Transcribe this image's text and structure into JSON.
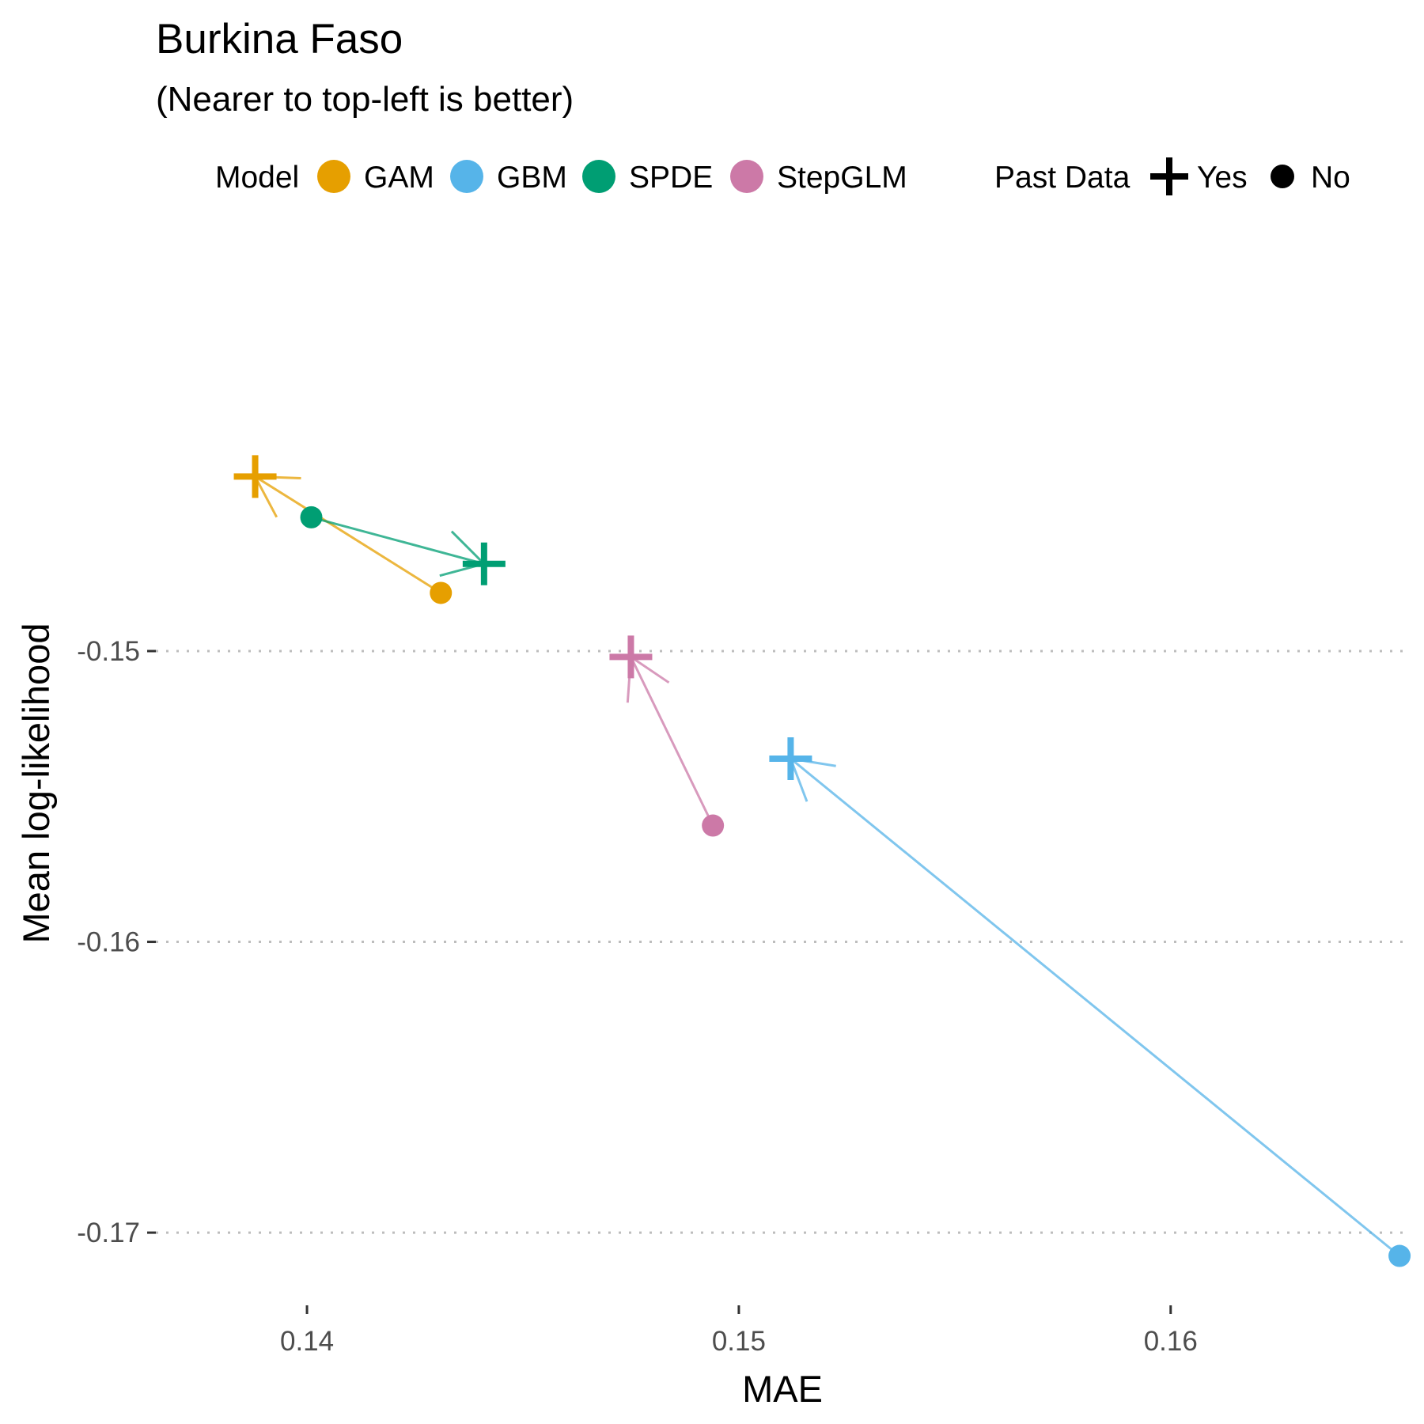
{
  "chart_data": {
    "type": "scatter",
    "title": "Burkina Faso",
    "subtitle": "(Nearer to top-left is better)",
    "xlabel": "MAE",
    "ylabel": "Mean log-likelihood",
    "xlim": [
      0.1365,
      0.1655
    ],
    "ylim": [
      -0.1725,
      -0.1355
    ],
    "x_ticks": [
      0.14,
      0.15,
      0.16
    ],
    "x_tick_labels": [
      "0.14",
      "0.15",
      "0.16"
    ],
    "y_ticks": [
      -0.15,
      -0.16,
      -0.17
    ],
    "y_tick_labels": [
      "-0.15",
      "-0.16",
      "-0.17"
    ],
    "grid": "major-y-dotted",
    "legend": {
      "placement": "top",
      "color_title": "Model",
      "shape_title": "Past Data",
      "shapes": [
        {
          "label": "Yes",
          "shape": "plus"
        },
        {
          "label": "No",
          "shape": "circle"
        }
      ]
    },
    "series": [
      {
        "name": "GAM",
        "color": "#E69F00",
        "points": [
          {
            "past_data": "Yes",
            "x": 0.1388,
            "y": -0.144
          },
          {
            "past_data": "No",
            "x": 0.1431,
            "y": -0.148
          }
        ],
        "arrow": {
          "from": "No",
          "to": "Yes"
        }
      },
      {
        "name": "GBM",
        "color": "#56B4E9",
        "points": [
          {
            "past_data": "Yes",
            "x": 0.1512,
            "y": -0.1537
          },
          {
            "past_data": "No",
            "x": 0.1653,
            "y": -0.1708
          }
        ],
        "arrow": {
          "from": "No",
          "to": "Yes"
        }
      },
      {
        "name": "SPDE",
        "color": "#009E73",
        "points": [
          {
            "past_data": "Yes",
            "x": 0.1441,
            "y": -0.147
          },
          {
            "past_data": "No",
            "x": 0.1401,
            "y": -0.1454
          }
        ],
        "arrow": {
          "from": "No",
          "to": "Yes"
        }
      },
      {
        "name": "StepGLM",
        "color": "#CC79A7",
        "points": [
          {
            "past_data": "Yes",
            "x": 0.1475,
            "y": -0.1502
          },
          {
            "past_data": "No",
            "x": 0.1494,
            "y": -0.156
          }
        ],
        "arrow": {
          "from": "No",
          "to": "Yes"
        }
      }
    ]
  }
}
